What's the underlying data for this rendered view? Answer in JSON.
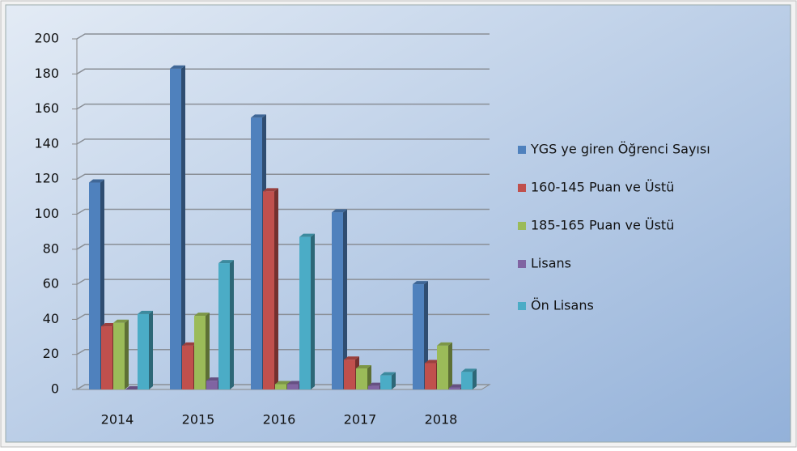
{
  "chart_data": {
    "type": "bar3d",
    "categories": [
      "2014",
      "2015",
      "2016",
      "2017",
      "2018"
    ],
    "series": [
      {
        "name": "YGS ye giren Öğrenci Sayısı",
        "color": "#4f81bd",
        "values": [
          118,
          183,
          155,
          101,
          60
        ]
      },
      {
        "name": "160-145 Puan ve Üstü",
        "color": "#c0504d",
        "values": [
          36,
          25,
          113,
          17,
          15
        ]
      },
      {
        "name": "185-165 Puan ve Üstü",
        "color": "#9bbb59",
        "values": [
          38,
          42,
          3,
          12,
          25
        ]
      },
      {
        "name": "Lisans",
        "color": "#8064a2",
        "values": [
          0,
          5,
          3,
          2,
          1
        ]
      },
      {
        "name": "Ön Lisans",
        "color": "#4bacc6",
        "values": [
          43,
          72,
          87,
          8,
          10
        ]
      }
    ],
    "ylim": [
      0,
      200
    ],
    "yticks": [
      0,
      20,
      40,
      60,
      80,
      100,
      120,
      140,
      160,
      180,
      200
    ],
    "grid": true,
    "legend": "right"
  }
}
